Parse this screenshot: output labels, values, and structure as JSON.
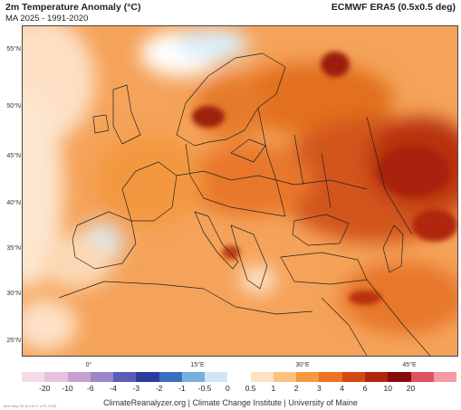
{
  "header": {
    "title": "2m Temperature Anomaly (°C)",
    "subtitle": "MA 2025 - 1991-2020",
    "source": "ECMWF ERA5 (0.5x0.5 deg)"
  },
  "map": {
    "lat_labels": [
      "55°N",
      "50°N",
      "45°N",
      "40°N",
      "35°N",
      "30°N",
      "25°N"
    ],
    "lon_labels": [
      "0°",
      "15°E",
      "30°E",
      "45°E"
    ]
  },
  "colorbar": {
    "labels": [
      "-20",
      "-10",
      "-6",
      "-4",
      "-3",
      "-2",
      "-1",
      "-0.5",
      "0",
      "0.5",
      "1",
      "2",
      "3",
      "4",
      "6",
      "10",
      "20"
    ],
    "colors": [
      "#f5dbe6",
      "#e5c3dc",
      "#c99ed0",
      "#9b86c9",
      "#5a5db8",
      "#2b3c9b",
      "#3a6fc0",
      "#78aee0",
      "#cfe6f7",
      "#ffffff",
      "#fde3c4",
      "#fbc27e",
      "#f79a3e",
      "#ec7220",
      "#d24a12",
      "#b0250c",
      "#8a0a0a",
      "#e0525f",
      "#f59aa6"
    ]
  },
  "footer": {
    "credit": "ClimateReanalyzer.org | Climate Change Institute | University of Maine",
    "timestamp": "Mon May 26 15:19:17 UTC 2025"
  }
}
